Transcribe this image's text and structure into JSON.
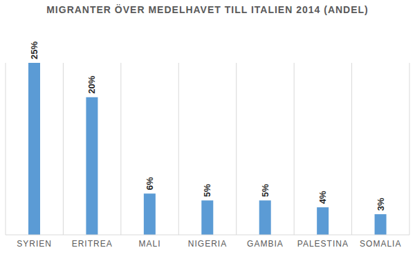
{
  "chart_data": {
    "type": "bar",
    "title": "MIGRANTER ÖVER MEDELHAVET TILL ITALIEN 2014 (ANDEL)",
    "categories": [
      "SYRIEN",
      "ERITREA",
      "MALI",
      "NIGERIA",
      "GAMBIA",
      "PALESTINA",
      "SOMALIA"
    ],
    "values": [
      25,
      20,
      6,
      5,
      5,
      4,
      3
    ],
    "value_labels": [
      "25%",
      "20%",
      "6%",
      "5%",
      "5%",
      "4%",
      "3%"
    ],
    "color": "#5b9bd5",
    "ylim": [
      0,
      25
    ],
    "grid": true,
    "data_labels": true,
    "tick_labels": "x"
  }
}
